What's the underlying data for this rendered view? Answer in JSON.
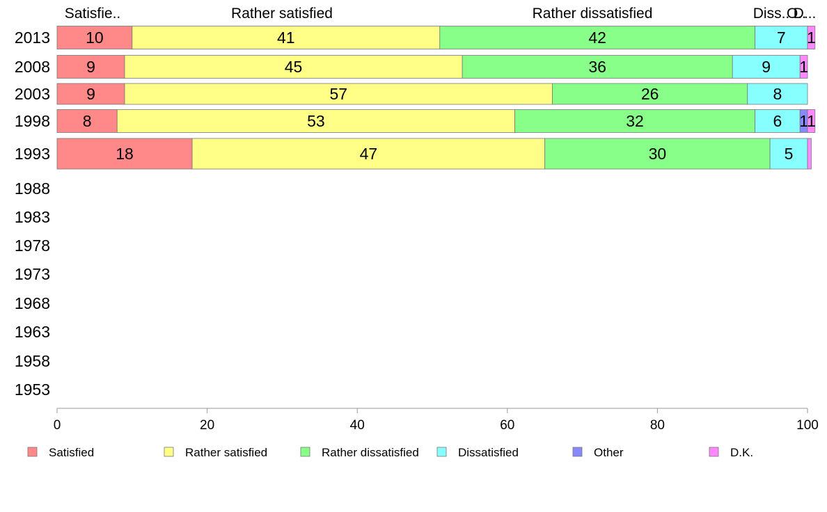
{
  "chart_data": {
    "type": "bar",
    "orientation": "horizontal",
    "stacked": true,
    "categories": [
      "2013",
      "2008",
      "2003",
      "1998",
      "1993",
      "1988",
      "1983",
      "1978",
      "1973",
      "1968",
      "1963",
      "1958",
      "1953"
    ],
    "series": [
      {
        "name": "Satisfied",
        "color": "#ff8888",
        "values": [
          10,
          9,
          9,
          8,
          18,
          null,
          null,
          null,
          null,
          null,
          null,
          null,
          null
        ]
      },
      {
        "name": "Rather satisfied",
        "color": "#ffff88",
        "values": [
          41,
          45,
          57,
          53,
          47,
          null,
          null,
          null,
          null,
          null,
          null,
          null,
          null
        ]
      },
      {
        "name": "Rather dissatisfied",
        "color": "#88ff88",
        "values": [
          42,
          36,
          26,
          32,
          30,
          null,
          null,
          null,
          null,
          null,
          null,
          null,
          null
        ]
      },
      {
        "name": "Dissatisfied",
        "color": "#88ffff",
        "values": [
          7,
          9,
          8,
          6,
          5,
          null,
          null,
          null,
          null,
          null,
          null,
          null,
          null
        ]
      },
      {
        "name": "Other",
        "color": "#8888ff",
        "values": [
          0,
          0,
          0,
          1,
          0,
          null,
          null,
          null,
          null,
          null,
          null,
          null,
          null
        ]
      },
      {
        "name": "D.K.",
        "color": "#ff88ff",
        "values": [
          1,
          1,
          0,
          1,
          0.5,
          null,
          null,
          null,
          null,
          null,
          null,
          null,
          null
        ]
      }
    ],
    "data_labels": [
      [
        "10",
        "41",
        "42",
        "7",
        "",
        "1"
      ],
      [
        "9",
        "45",
        "36",
        "9",
        "",
        "1"
      ],
      [
        "9",
        "57",
        "26",
        "8",
        "",
        ""
      ],
      [
        "8",
        "53",
        "32",
        "6",
        "1",
        "1"
      ],
      [
        "18",
        "47",
        "30",
        "5",
        "",
        ""
      ]
    ],
    "top_labels": [
      "Satisfie..",
      "Rather satisfied",
      "Rather dissatisfied",
      "Diss..",
      "O..",
      "D..."
    ],
    "x_ticks": [
      0,
      20,
      40,
      60,
      80,
      100
    ],
    "xlim": [
      0,
      100
    ],
    "title": "",
    "xlabel": "",
    "ylabel": "",
    "grid": false,
    "legend_position": "bottom"
  }
}
